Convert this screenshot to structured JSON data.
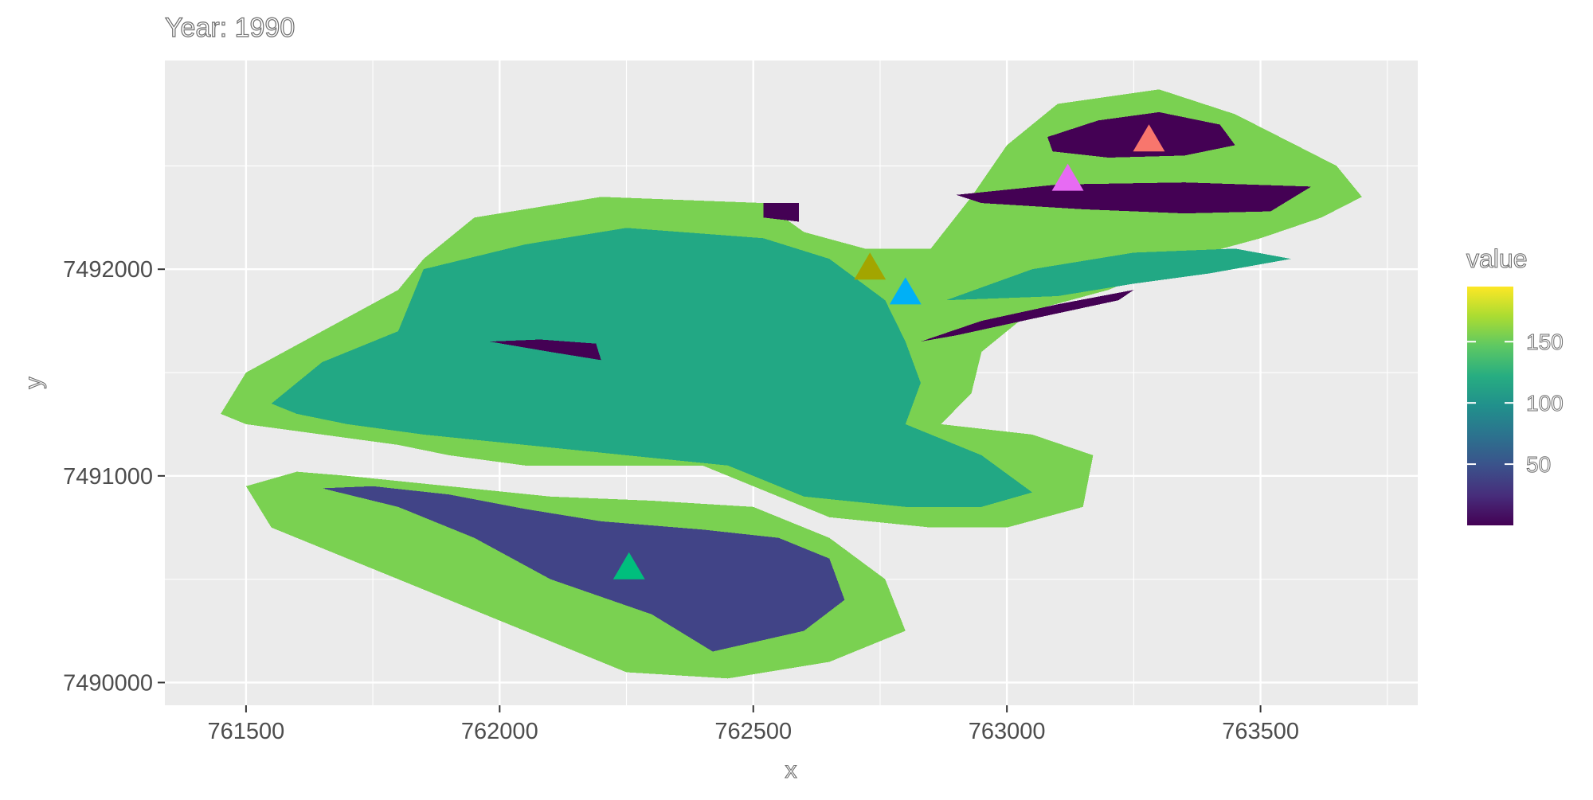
{
  "chart_data": {
    "type": "heatmap",
    "title": "Year: 1990",
    "xlabel": "x",
    "ylabel": "y",
    "xlim": [
      761340,
      763810
    ],
    "ylim": [
      7489890,
      7493010
    ],
    "x_ticks": [
      761500,
      762000,
      762500,
      763000,
      763500
    ],
    "x_tick_labels": [
      "761500",
      "762000",
      "762500",
      "763000",
      "763500"
    ],
    "y_ticks": [
      7490000,
      7491000,
      7492000
    ],
    "y_tick_labels": [
      "7490000",
      "7491000",
      "7492000"
    ],
    "grid": true,
    "legend": {
      "title": "value",
      "position": "right",
      "range": [
        0,
        195
      ],
      "ticks": [
        50,
        100,
        150
      ],
      "tick_labels": [
        "50",
        "100",
        "150"
      ]
    },
    "regions": [
      {
        "value": 165,
        "color": "#7AD151",
        "polygon": [
          [
            761450,
            7491300
          ],
          [
            761500,
            7491500
          ],
          [
            761650,
            7491700
          ],
          [
            761800,
            7491900
          ],
          [
            761850,
            7492050
          ],
          [
            761950,
            7492250
          ],
          [
            762200,
            7492350
          ],
          [
            762520,
            7492320
          ],
          [
            762600,
            7492180
          ],
          [
            762720,
            7492100
          ],
          [
            762850,
            7492100
          ],
          [
            762930,
            7492350
          ],
          [
            763000,
            7492600
          ],
          [
            763100,
            7492800
          ],
          [
            763300,
            7492870
          ],
          [
            763450,
            7492750
          ],
          [
            763570,
            7492600
          ],
          [
            763650,
            7492500
          ],
          [
            763700,
            7492350
          ],
          [
            763620,
            7492250
          ],
          [
            763500,
            7492150
          ],
          [
            763350,
            7492050
          ],
          [
            763200,
            7491900
          ],
          [
            763050,
            7491800
          ],
          [
            762950,
            7491600
          ],
          [
            762930,
            7491400
          ],
          [
            762870,
            7491250
          ],
          [
            763050,
            7491200
          ],
          [
            763170,
            7491100
          ],
          [
            763150,
            7490850
          ],
          [
            763000,
            7490750
          ],
          [
            762850,
            7490750
          ],
          [
            762650,
            7490800
          ],
          [
            762550,
            7490900
          ],
          [
            762400,
            7491050
          ],
          [
            762200,
            7491050
          ],
          [
            762050,
            7491050
          ],
          [
            761900,
            7491100
          ],
          [
            761800,
            7491150
          ],
          [
            761650,
            7491200
          ],
          [
            761500,
            7491250
          ]
        ]
      },
      {
        "value": 165,
        "color": "#7AD151",
        "polygon": [
          [
            761500,
            7490950
          ],
          [
            761550,
            7490750
          ],
          [
            761700,
            7490600
          ],
          [
            761850,
            7490450
          ],
          [
            762000,
            7490300
          ],
          [
            762150,
            7490150
          ],
          [
            762250,
            7490050
          ],
          [
            762450,
            7490020
          ],
          [
            762650,
            7490100
          ],
          [
            762800,
            7490250
          ],
          [
            762760,
            7490500
          ],
          [
            762650,
            7490700
          ],
          [
            762500,
            7490850
          ],
          [
            762300,
            7490880
          ],
          [
            762100,
            7490900
          ],
          [
            761900,
            7490950
          ],
          [
            761700,
            7491000
          ],
          [
            761600,
            7491020
          ]
        ]
      },
      {
        "value": 110,
        "color": "#22A884",
        "polygon": [
          [
            761550,
            7491350
          ],
          [
            761650,
            7491550
          ],
          [
            761800,
            7491700
          ],
          [
            761850,
            7492000
          ],
          [
            762050,
            7492120
          ],
          [
            762250,
            7492200
          ],
          [
            762520,
            7492150
          ],
          [
            762650,
            7492050
          ],
          [
            762760,
            7491850
          ],
          [
            762800,
            7491650
          ],
          [
            762830,
            7491450
          ],
          [
            762800,
            7491250
          ],
          [
            762950,
            7491100
          ],
          [
            763050,
            7490920
          ],
          [
            762950,
            7490850
          ],
          [
            762800,
            7490850
          ],
          [
            762600,
            7490900
          ],
          [
            762450,
            7491050
          ],
          [
            762250,
            7491100
          ],
          [
            762050,
            7491150
          ],
          [
            761850,
            7491200
          ],
          [
            761700,
            7491250
          ],
          [
            761600,
            7491300
          ]
        ]
      },
      {
        "value": 110,
        "color": "#22A884",
        "polygon": [
          [
            762880,
            7491850
          ],
          [
            763050,
            7492000
          ],
          [
            763250,
            7492080
          ],
          [
            763450,
            7492100
          ],
          [
            763560,
            7492050
          ],
          [
            763400,
            7491980
          ],
          [
            763250,
            7491930
          ],
          [
            763100,
            7491870
          ]
        ]
      },
      {
        "value": 40,
        "color": "#414487",
        "polygon": [
          [
            761650,
            7490940
          ],
          [
            761800,
            7490850
          ],
          [
            761950,
            7490700
          ],
          [
            762100,
            7490500
          ],
          [
            762300,
            7490330
          ],
          [
            762420,
            7490150
          ],
          [
            762600,
            7490250
          ],
          [
            762680,
            7490400
          ],
          [
            762650,
            7490600
          ],
          [
            762550,
            7490700
          ],
          [
            762400,
            7490740
          ],
          [
            762200,
            7490780
          ],
          [
            762050,
            7490840
          ],
          [
            761900,
            7490910
          ],
          [
            761750,
            7490950
          ]
        ]
      },
      {
        "value": 5,
        "color": "#440154",
        "polygon": [
          [
            763080,
            7492640
          ],
          [
            763180,
            7492720
          ],
          [
            763300,
            7492760
          ],
          [
            763420,
            7492700
          ],
          [
            763450,
            7492600
          ],
          [
            763350,
            7492550
          ],
          [
            763200,
            7492540
          ],
          [
            763090,
            7492570
          ]
        ]
      },
      {
        "value": 5,
        "color": "#440154",
        "polygon": [
          [
            762900,
            7492360
          ],
          [
            763100,
            7492410
          ],
          [
            763350,
            7492420
          ],
          [
            763600,
            7492400
          ],
          [
            763520,
            7492280
          ],
          [
            763350,
            7492270
          ],
          [
            763150,
            7492290
          ],
          [
            762950,
            7492320
          ]
        ]
      },
      {
        "value": 5,
        "color": "#440154",
        "polygon": [
          [
            762830,
            7491650
          ],
          [
            762950,
            7491750
          ],
          [
            763100,
            7491830
          ],
          [
            763250,
            7491900
          ],
          [
            763220,
            7491850
          ],
          [
            763050,
            7491760
          ],
          [
            762900,
            7491680
          ]
        ]
      },
      {
        "value": 5,
        "color": "#440154",
        "polygon": [
          [
            761980,
            7491650
          ],
          [
            762100,
            7491600
          ],
          [
            762200,
            7491560
          ],
          [
            762190,
            7491640
          ],
          [
            762080,
            7491660
          ]
        ]
      },
      {
        "value": 5,
        "color": "#440154",
        "polygon": [
          [
            762520,
            7492320
          ],
          [
            762590,
            7492320
          ],
          [
            762590,
            7492230
          ],
          [
            762520,
            7492250
          ]
        ]
      }
    ],
    "points": [
      {
        "x": 763280,
        "y": 7492620,
        "color": "#F8766D"
      },
      {
        "x": 763120,
        "y": 7492430,
        "color": "#E76BF3"
      },
      {
        "x": 762730,
        "y": 7492000,
        "color": "#A3A500"
      },
      {
        "x": 762800,
        "y": 7491880,
        "color": "#00B0F6"
      },
      {
        "x": 762255,
        "y": 7490550,
        "color": "#00BF7D"
      }
    ]
  }
}
